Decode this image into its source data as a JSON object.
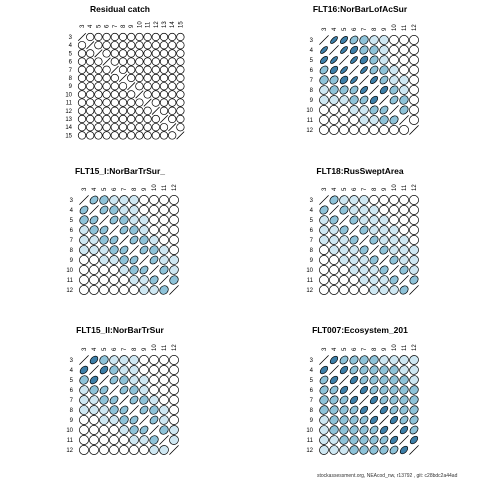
{
  "footer": "stockassessment.org, NEAcod_nw, r13792 , git: c28bdc2a44ad",
  "colors": {
    "stroke": "#000000",
    "light": "#cfe8f3",
    "mid": "#8ec3d9",
    "dark": "#3d7fa8"
  },
  "chart_data": [
    {
      "type": "heatmap",
      "glyph": "ellipse-correlation",
      "title": "Residual catch",
      "labels": [
        3,
        4,
        5,
        6,
        7,
        8,
        9,
        10,
        11,
        12,
        13,
        14,
        15
      ],
      "rows": [
        [
          1,
          0,
          0,
          0,
          0,
          0,
          0,
          0,
          0,
          0,
          0,
          0,
          0
        ],
        [
          0,
          1,
          0,
          0,
          0,
          0,
          0,
          0,
          0,
          0,
          0,
          0,
          0
        ],
        [
          0,
          0,
          1,
          0,
          0,
          0,
          0,
          0,
          0,
          0,
          0,
          0,
          0
        ],
        [
          0,
          0,
          0,
          1,
          0,
          0,
          0,
          0,
          0,
          0,
          0,
          0,
          0
        ],
        [
          0,
          0,
          0,
          0,
          1,
          0,
          0,
          0,
          0,
          0,
          0,
          0,
          0
        ],
        [
          0,
          0,
          0,
          0,
          0,
          1,
          0,
          0,
          0,
          0,
          0,
          0,
          0
        ],
        [
          0,
          0,
          0,
          0,
          0,
          0,
          1,
          0,
          0,
          0,
          0,
          0,
          0
        ],
        [
          0,
          0,
          0,
          0,
          0,
          0,
          0,
          1,
          0,
          0,
          0,
          0,
          0
        ],
        [
          0,
          0,
          0,
          0,
          0,
          0,
          0,
          0,
          1,
          0,
          0,
          0,
          0
        ],
        [
          0,
          0,
          0,
          0,
          0,
          0,
          0,
          0,
          0,
          1,
          0,
          0,
          0
        ],
        [
          0,
          0,
          0,
          0,
          0,
          0,
          0,
          0,
          0,
          0,
          1,
          0,
          0
        ],
        [
          0,
          0,
          0,
          0,
          0,
          0,
          0,
          0,
          0,
          0,
          0,
          1,
          0
        ],
        [
          0,
          0,
          0,
          0,
          0,
          0,
          0,
          0,
          0,
          0,
          0,
          0,
          1
        ]
      ]
    },
    {
      "type": "heatmap",
      "glyph": "ellipse-correlation",
      "title": "FLT16:NorBarLofAcSur",
      "labels": [
        3,
        4,
        5,
        6,
        7,
        8,
        9,
        10,
        11,
        12
      ],
      "rows": [
        [
          1,
          0.9,
          0.85,
          0.7,
          0.5,
          0.4,
          0.2,
          0,
          0,
          0
        ],
        [
          0.9,
          1,
          0.9,
          0.8,
          0.6,
          0.5,
          0.3,
          0,
          0,
          0
        ],
        [
          0.85,
          0.9,
          1,
          0.9,
          0.75,
          0.6,
          0.4,
          0.1,
          0,
          0
        ],
        [
          0.7,
          0.8,
          0.9,
          1,
          0.9,
          0.7,
          0.5,
          0.3,
          0.1,
          0
        ],
        [
          0.5,
          0.6,
          0.75,
          0.9,
          1,
          0.85,
          0.7,
          0.4,
          0.2,
          0
        ],
        [
          0.4,
          0.5,
          0.6,
          0.7,
          0.85,
          1,
          0.8,
          0.6,
          0.3,
          0
        ],
        [
          0.2,
          0.3,
          0.4,
          0.5,
          0.7,
          0.8,
          1,
          0.7,
          0.5,
          0
        ],
        [
          0,
          0,
          0.1,
          0.3,
          0.4,
          0.6,
          0.7,
          1,
          0.6,
          0
        ],
        [
          0,
          0,
          0,
          0.1,
          0.2,
          0.3,
          0.5,
          0.6,
          1,
          0
        ],
        [
          0,
          0,
          0,
          0,
          0,
          0,
          0,
          0,
          0,
          1
        ]
      ]
    },
    {
      "type": "heatmap",
      "glyph": "ellipse-correlation",
      "title": "FLT15_I:NorBarTrSur_",
      "labels": [
        3,
        4,
        5,
        6,
        7,
        8,
        9,
        10,
        11,
        12
      ],
      "rows": [
        [
          1,
          0.7,
          0.5,
          0.4,
          0.3,
          0.15,
          0,
          0,
          0,
          0
        ],
        [
          0.7,
          1,
          0.7,
          0.5,
          0.4,
          0.3,
          0.1,
          0,
          0,
          0
        ],
        [
          0.5,
          0.7,
          1,
          0.7,
          0.5,
          0.4,
          0.2,
          0,
          0,
          0
        ],
        [
          0.4,
          0.5,
          0.7,
          1,
          0.7,
          0.5,
          0.3,
          0.1,
          0,
          0
        ],
        [
          0.3,
          0.4,
          0.5,
          0.7,
          1,
          0.7,
          0.5,
          0.3,
          0,
          0
        ],
        [
          0.15,
          0.3,
          0.4,
          0.5,
          0.7,
          1,
          0.7,
          0.5,
          0.2,
          0
        ],
        [
          0,
          0.1,
          0.2,
          0.3,
          0.5,
          0.7,
          1,
          0.7,
          0.4,
          0.2
        ],
        [
          0,
          0,
          0,
          0.1,
          0.3,
          0.5,
          0.7,
          1,
          0.6,
          0.4
        ],
        [
          0,
          0,
          0,
          0,
          0,
          0.2,
          0.4,
          0.6,
          1,
          0.5
        ],
        [
          0,
          0,
          0,
          0,
          0,
          0,
          0.2,
          0.4,
          0.5,
          1
        ]
      ]
    },
    {
      "type": "heatmap",
      "glyph": "ellipse-correlation",
      "title": "FLT18:RusSweptArea",
      "labels": [
        3,
        4,
        5,
        6,
        7,
        8,
        9,
        10,
        11,
        12
      ],
      "rows": [
        [
          1,
          0.6,
          0.4,
          0.3,
          0.2,
          0.1,
          0.1,
          0,
          0,
          0
        ],
        [
          0.6,
          1,
          0.6,
          0.4,
          0.3,
          0.2,
          0.1,
          0.1,
          0,
          0
        ],
        [
          0.4,
          0.6,
          1,
          0.6,
          0.4,
          0.3,
          0.2,
          0.1,
          0,
          0
        ],
        [
          0.3,
          0.4,
          0.6,
          1,
          0.6,
          0.4,
          0.3,
          0.2,
          0.1,
          0
        ],
        [
          0.2,
          0.3,
          0.4,
          0.6,
          1,
          0.6,
          0.4,
          0.3,
          0.2,
          0.1
        ],
        [
          0.1,
          0.2,
          0.3,
          0.4,
          0.6,
          1,
          0.6,
          0.4,
          0.3,
          0.2
        ],
        [
          0.1,
          0.1,
          0.2,
          0.3,
          0.4,
          0.6,
          1,
          0.6,
          0.4,
          0.3
        ],
        [
          0,
          0.1,
          0.1,
          0.2,
          0.3,
          0.4,
          0.6,
          1,
          0.6,
          0.4
        ],
        [
          0,
          0,
          0,
          0.1,
          0.2,
          0.3,
          0.4,
          0.6,
          1,
          0.6
        ],
        [
          0,
          0,
          0,
          0,
          0.1,
          0.2,
          0.3,
          0.4,
          0.6,
          1
        ]
      ]
    },
    {
      "type": "heatmap",
      "glyph": "ellipse-correlation",
      "title": "FLT15_II:NorBarTrSur",
      "labels": [
        3,
        4,
        5,
        6,
        7,
        8,
        9,
        10,
        11,
        12
      ],
      "rows": [
        [
          1,
          0.75,
          0.5,
          0.4,
          0.3,
          0.2,
          0,
          0,
          0,
          0
        ],
        [
          0.75,
          1,
          0.75,
          0.5,
          0.4,
          0.3,
          0.1,
          0,
          0,
          0
        ],
        [
          0.5,
          0.75,
          1,
          0.7,
          0.5,
          0.4,
          0.2,
          0,
          0,
          0
        ],
        [
          0.4,
          0.5,
          0.7,
          1,
          0.7,
          0.5,
          0.3,
          0.1,
          0,
          0
        ],
        [
          0.3,
          0.4,
          0.5,
          0.7,
          1,
          0.7,
          0.5,
          0.3,
          0,
          0
        ],
        [
          0.2,
          0.3,
          0.4,
          0.5,
          0.7,
          1,
          0.7,
          0.5,
          0.2,
          0
        ],
        [
          0,
          0.1,
          0.2,
          0.3,
          0.5,
          0.7,
          1,
          0.7,
          0.4,
          0.1
        ],
        [
          0,
          0,
          0,
          0.1,
          0.3,
          0.5,
          0.7,
          1,
          0.5,
          0.3
        ],
        [
          0,
          0,
          0,
          0,
          0,
          0.2,
          0.4,
          0.5,
          1,
          0.3
        ],
        [
          0,
          0,
          0,
          0,
          0,
          0,
          0.1,
          0.3,
          0.3,
          1
        ]
      ]
    },
    {
      "type": "heatmap",
      "glyph": "ellipse-correlation",
      "title": "FLT007:Ecosystem_201",
      "labels": [
        3,
        4,
        5,
        6,
        7,
        8,
        9,
        10,
        11,
        12
      ],
      "rows": [
        [
          1,
          0.8,
          0.7,
          0.6,
          0.5,
          0.45,
          0.4,
          0.35,
          0.3,
          0.3
        ],
        [
          0.8,
          1,
          0.8,
          0.7,
          0.6,
          0.55,
          0.5,
          0.45,
          0.4,
          0.35
        ],
        [
          0.7,
          0.8,
          1,
          0.8,
          0.7,
          0.6,
          0.55,
          0.5,
          0.45,
          0.4
        ],
        [
          0.6,
          0.7,
          0.8,
          1,
          0.8,
          0.7,
          0.6,
          0.55,
          0.5,
          0.45
        ],
        [
          0.5,
          0.6,
          0.7,
          0.8,
          1,
          0.8,
          0.7,
          0.6,
          0.55,
          0.5
        ],
        [
          0.45,
          0.55,
          0.6,
          0.7,
          0.8,
          1,
          0.8,
          0.7,
          0.6,
          0.55
        ],
        [
          0.4,
          0.5,
          0.55,
          0.6,
          0.7,
          0.8,
          1,
          0.8,
          0.7,
          0.6
        ],
        [
          0.35,
          0.45,
          0.5,
          0.55,
          0.6,
          0.7,
          0.8,
          1,
          0.8,
          0.7
        ],
        [
          0.3,
          0.4,
          0.45,
          0.5,
          0.55,
          0.6,
          0.7,
          0.8,
          1,
          0.8
        ],
        [
          0.3,
          0.35,
          0.4,
          0.45,
          0.5,
          0.55,
          0.6,
          0.7,
          0.8,
          1
        ]
      ]
    }
  ]
}
